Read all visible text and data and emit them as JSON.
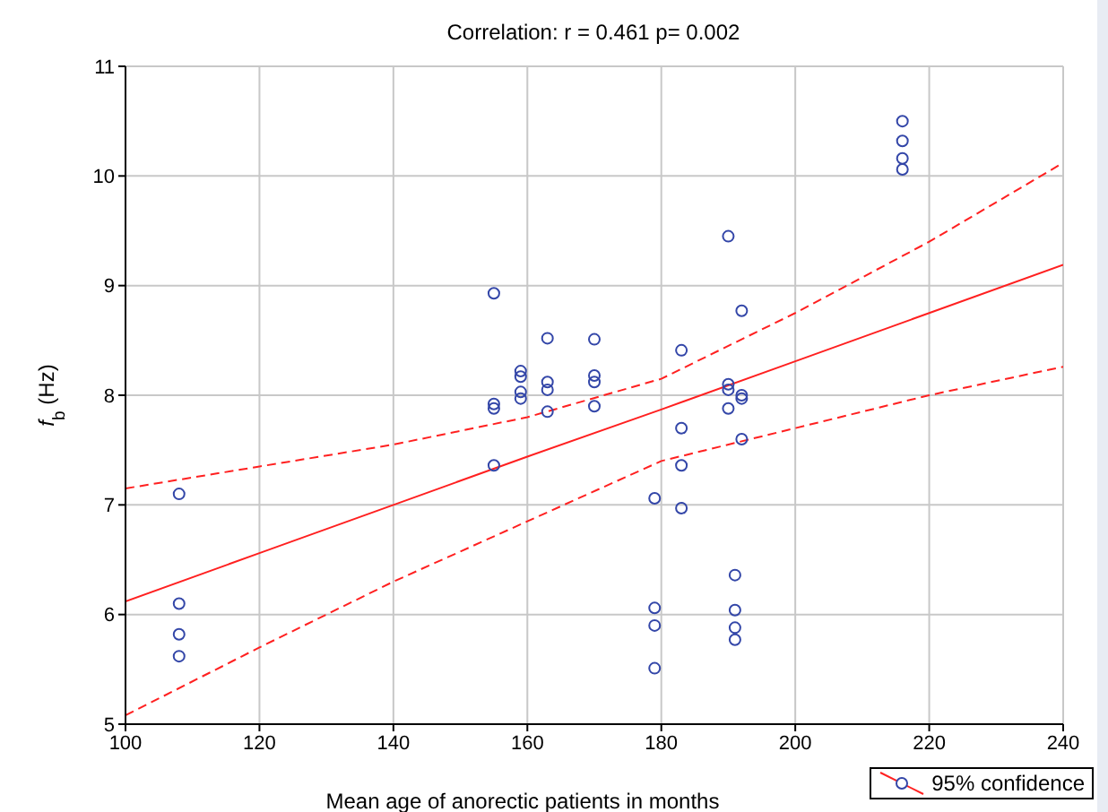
{
  "chart_data": {
    "type": "scatter",
    "title": "Correlation: r = 0.461 p= 0.002",
    "xlabel": "Mean age of anorectic patients in months",
    "ylabel": "f$_{b}$ (Hz)",
    "xlim": [
      100,
      240
    ],
    "xticks": [
      100,
      120,
      140,
      160,
      180,
      200,
      220,
      240
    ],
    "ylim": [
      5,
      11
    ],
    "yticks": [
      5,
      6,
      7,
      8,
      9,
      10,
      11
    ],
    "grid": true,
    "legend": "bottom right",
    "series": [
      {
        "marker": "circle",
        "color": "#3346a8",
        "x": [
          108,
          108,
          108,
          108,
          155,
          155,
          155,
          155,
          159,
          159,
          159,
          159,
          163,
          163,
          163,
          163,
          170,
          170,
          170,
          170,
          179,
          179,
          179,
          179,
          183,
          183,
          183,
          183,
          190,
          190,
          190,
          190,
          192,
          192,
          192,
          192,
          191,
          191,
          191,
          191,
          216,
          216,
          216,
          216
        ],
        "values": [
          7.1,
          6.1,
          5.82,
          5.62,
          8.93,
          7.92,
          7.88,
          7.36,
          8.22,
          8.17,
          8.03,
          7.97,
          8.52,
          8.12,
          8.05,
          7.85,
          8.51,
          8.18,
          8.12,
          7.9,
          7.06,
          6.06,
          5.9,
          5.51,
          8.41,
          7.7,
          7.36,
          6.97,
          9.45,
          8.1,
          8.05,
          7.88,
          8.77,
          8.0,
          7.97,
          7.6,
          6.36,
          6.04,
          5.88,
          5.77,
          10.5,
          10.32,
          10.16,
          10.06
        ]
      },
      {
        "type": "line",
        "name": "95% confidence",
        "marker": "none",
        "line_style": "solid",
        "color": "#ff2020",
        "x": [
          100,
          120,
          140,
          160,
          180,
          200,
          220,
          240
        ],
        "values": [
          6.12,
          6.56,
          7.0,
          7.44,
          7.87,
          8.31,
          8.75,
          9.19
        ]
      },
      {
        "type": "line",
        "marker": "none",
        "line_style": "dashed",
        "color": "#ff2020",
        "x": [
          100,
          120,
          140,
          160,
          180,
          200,
          220,
          240
        ],
        "values": [
          7.15,
          7.35,
          7.55,
          7.8,
          8.15,
          8.75,
          9.4,
          10.12
        ]
      },
      {
        "type": "line",
        "marker": "none",
        "line_style": "dashed",
        "color": "#ff2020",
        "x": [
          100,
          120,
          140,
          160,
          180,
          200,
          220,
          240
        ],
        "values": [
          5.08,
          5.7,
          6.3,
          6.85,
          7.4,
          7.7,
          8.0,
          8.26
        ]
      }
    ]
  }
}
